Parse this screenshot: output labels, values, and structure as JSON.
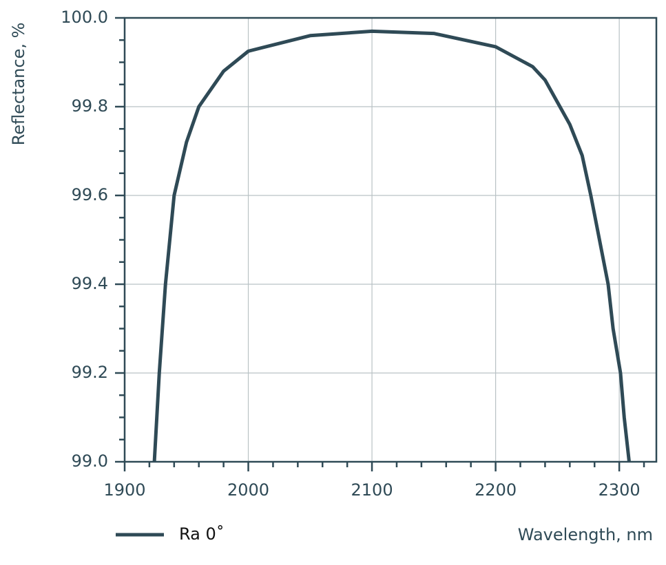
{
  "chart_data": {
    "type": "line",
    "xlabel": "Wavelength, nm",
    "ylabel": "Reflectance, %",
    "xlim": [
      1900,
      2330
    ],
    "ylim": [
      99.0,
      100.0
    ],
    "xticks": [
      1900,
      2000,
      2100,
      2200,
      2300
    ],
    "yticks": [
      {
        "value": 99.0,
        "label": "99.0"
      },
      99.2,
      99.4,
      99.6,
      99.8,
      {
        "value": 100.0,
        "label": "100.0"
      }
    ],
    "xminorticks": [
      1920,
      1940,
      1960,
      1980,
      2020,
      2040,
      2060,
      2080,
      2120,
      2140,
      2160,
      2180,
      2220,
      2240,
      2260,
      2280,
      2320
    ],
    "yminorticks": [
      99.05,
      99.1,
      99.15,
      99.25,
      99.3,
      99.35,
      99.45,
      99.5,
      99.55,
      99.65,
      99.7,
      99.75,
      99.85,
      99.9,
      99.95
    ],
    "grid": true,
    "legend": "bottom-left",
    "series": [
      {
        "name": "Ra 0˚",
        "color": "#2f4a56",
        "x": [
          1924,
          1926,
          1928,
          1933,
          1940,
          1950,
          1960,
          1980,
          2000,
          2050,
          2100,
          2150,
          2200,
          2230,
          2240,
          2252,
          2260,
          2270,
          2277,
          2291,
          2295,
          2301,
          2304,
          2308
        ],
        "values": [
          99.0,
          99.1,
          99.2,
          99.4,
          99.6,
          99.72,
          99.8,
          99.88,
          99.925,
          99.96,
          99.97,
          99.965,
          99.935,
          99.89,
          99.86,
          99.8,
          99.76,
          99.69,
          99.6,
          99.4,
          99.3,
          99.2,
          99.1,
          99.0
        ]
      }
    ]
  }
}
